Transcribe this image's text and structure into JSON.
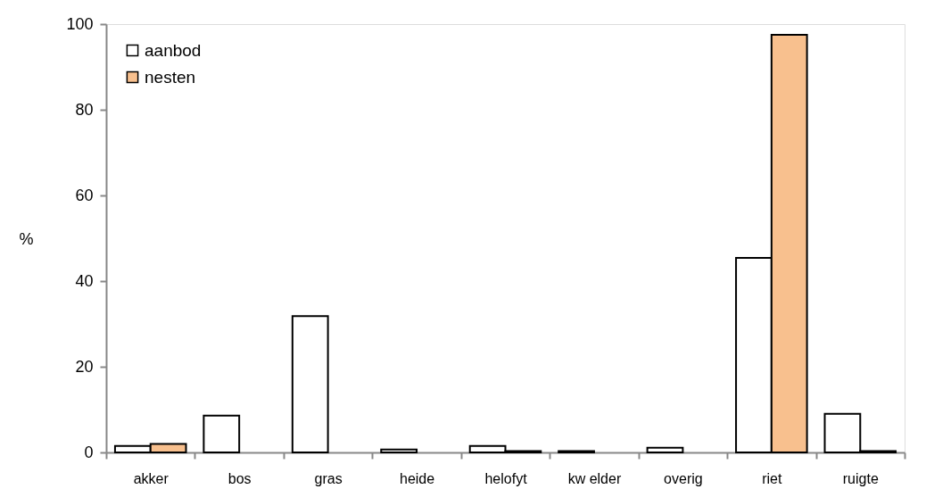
{
  "chart_data": {
    "type": "bar",
    "ylabel": "%",
    "categories": [
      "akker",
      "bos",
      "gras",
      "heide",
      "helofyt",
      "kw elder",
      "overig",
      "riet",
      "ruigte"
    ],
    "series": [
      {
        "name": "aanbod",
        "color": "#ffffff",
        "values": [
          1.5,
          8.6,
          31.8,
          0.7,
          1.5,
          0.3,
          1.1,
          45.4,
          9.0
        ]
      },
      {
        "name": "nesten",
        "color": "#f8c08e",
        "values": [
          2.0,
          null,
          null,
          null,
          0.3,
          null,
          null,
          97.5,
          0.3
        ]
      }
    ],
    "ylim": [
      0,
      100
    ],
    "yticks": [
      0,
      20,
      40,
      60,
      80,
      100
    ],
    "grid": false,
    "legend": "top left"
  }
}
